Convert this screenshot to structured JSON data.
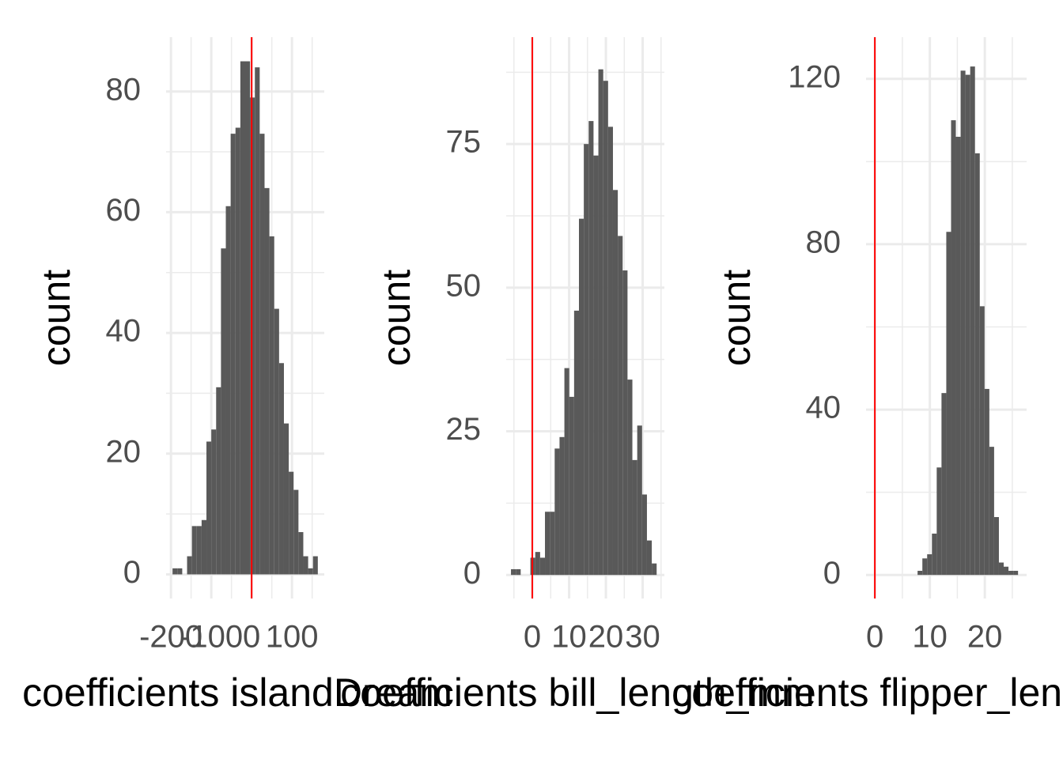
{
  "chart_data": [
    {
      "type": "histogram",
      "xlabel": "coefficients islandDream",
      "ylabel": "count",
      "bins": [
        -196,
        -184,
        -172,
        -160,
        -148,
        -136,
        -124,
        -112,
        -100,
        -88,
        -76,
        -64,
        -52,
        -40,
        -28,
        -16,
        -4,
        8,
        20,
        32,
        44,
        56,
        68,
        80,
        92,
        104,
        116,
        128,
        140,
        152,
        164
      ],
      "values": [
        1,
        1,
        0,
        3,
        8,
        8,
        9,
        22,
        24,
        31,
        54,
        61,
        73,
        74,
        85,
        85,
        79,
        84,
        73,
        64,
        56,
        44,
        35,
        25,
        17,
        14,
        7,
        3,
        1,
        3
      ],
      "color": "#595959",
      "vline": 0,
      "vline_color": "#ff0000",
      "xlim": [
        -212,
        180
      ],
      "xticks": [
        -200,
        -100,
        0,
        100
      ],
      "minor_xticks": [
        -150,
        -50,
        50,
        150
      ],
      "ylim": [
        -4,
        89
      ],
      "yticks": [
        0,
        20,
        40,
        60,
        80
      ],
      "minor_yticks": [
        10,
        30,
        50,
        70
      ],
      "grid": true
    },
    {
      "type": "histogram",
      "xlabel": "coefficients bill_length_mm",
      "ylabel": "count",
      "bins": [
        -5.8,
        -4.48,
        -3.16,
        -1.84,
        -0.52,
        0.8,
        2.12,
        3.44,
        4.76,
        6.08,
        7.4,
        8.72,
        10.04,
        11.36,
        12.68,
        14,
        15.32,
        16.64,
        17.96,
        19.28,
        20.6,
        21.92,
        23.24,
        24.56,
        25.88,
        27.2,
        28.52,
        29.84,
        31.16,
        32.48,
        33.8
      ],
      "values": [
        1,
        1,
        0,
        0,
        3,
        4,
        3,
        11,
        11,
        22,
        24,
        36,
        31,
        46,
        62,
        75,
        79,
        73,
        88,
        86,
        78,
        67,
        59,
        53,
        34,
        20,
        26,
        14,
        6,
        2
      ],
      "color": "#595959",
      "vline": 0,
      "vline_color": "#ff0000",
      "xlim": [
        -7.1,
        35.9
      ],
      "xticks": [
        0,
        10,
        20,
        30
      ],
      "minor_xticks": [
        -5,
        5,
        15,
        25,
        35
      ],
      "ylim": [
        -4.1,
        93.6
      ],
      "yticks": [
        0,
        25,
        50,
        75
      ],
      "minor_yticks": [
        12.5,
        37.5,
        62.5,
        87.5
      ],
      "grid": true
    },
    {
      "type": "histogram",
      "xlabel": "coefficients flipper_length_mm",
      "ylabel": "count",
      "bins": [
        7.77,
        8.64,
        9.51,
        10.38,
        11.25,
        12.12,
        12.99,
        13.86,
        14.73,
        15.6,
        16.47,
        17.34,
        18.21,
        19.08,
        19.95,
        20.82,
        21.69,
        22.56,
        23.43,
        24.3,
        25.17,
        26.04
      ],
      "values": [
        1,
        4,
        5,
        10,
        26,
        44,
        83,
        110,
        106,
        122,
        121,
        123,
        102,
        65,
        45,
        31,
        14,
        3,
        2,
        1,
        1
      ],
      "color": "#595959",
      "vline": 0,
      "vline_color": "#ff0000",
      "xlim": [
        -1.6,
        27.6
      ],
      "xticks": [
        0,
        10,
        20
      ],
      "minor_xticks": [
        5,
        15,
        25
      ],
      "ylim": [
        -5.7,
        130.1
      ],
      "yticks": [
        0,
        40,
        80,
        120
      ],
      "minor_yticks": [
        20,
        60,
        100
      ],
      "grid": true
    }
  ]
}
